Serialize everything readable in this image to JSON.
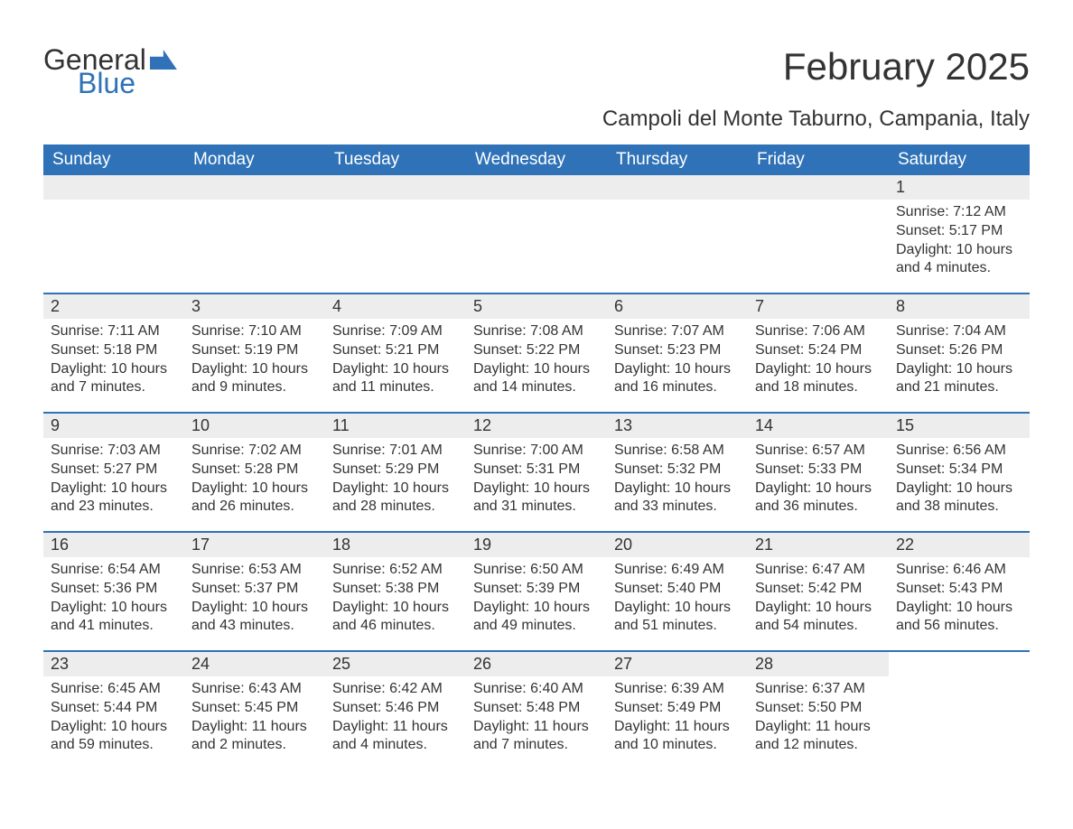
{
  "logo": {
    "word1": "General",
    "word2": "Blue"
  },
  "title": "February 2025",
  "location": "Campoli del Monte Taburno, Campania, Italy",
  "colors": {
    "header_bg": "#2f72b7",
    "header_fg": "#ffffff",
    "daynum_bg": "#ededed",
    "text": "#333333",
    "page_bg": "#ffffff",
    "week_border": "#2f72b7"
  },
  "typography": {
    "title_fontsize": 42,
    "location_fontsize": 24,
    "weekday_fontsize": 19,
    "daynum_fontsize": 18,
    "body_fontsize": 16
  },
  "weekdays": [
    "Sunday",
    "Monday",
    "Tuesday",
    "Wednesday",
    "Thursday",
    "Friday",
    "Saturday"
  ],
  "labels": {
    "sunrise": "Sunrise:",
    "sunset": "Sunset:",
    "daylight": "Daylight:"
  },
  "grid": {
    "columns": 7,
    "rows": 5,
    "first_day_column": 6
  },
  "days": [
    {
      "n": 1,
      "sunrise": "7:12 AM",
      "sunset": "5:17 PM",
      "daylight": "10 hours and 4 minutes."
    },
    {
      "n": 2,
      "sunrise": "7:11 AM",
      "sunset": "5:18 PM",
      "daylight": "10 hours and 7 minutes."
    },
    {
      "n": 3,
      "sunrise": "7:10 AM",
      "sunset": "5:19 PM",
      "daylight": "10 hours and 9 minutes."
    },
    {
      "n": 4,
      "sunrise": "7:09 AM",
      "sunset": "5:21 PM",
      "daylight": "10 hours and 11 minutes."
    },
    {
      "n": 5,
      "sunrise": "7:08 AM",
      "sunset": "5:22 PM",
      "daylight": "10 hours and 14 minutes."
    },
    {
      "n": 6,
      "sunrise": "7:07 AM",
      "sunset": "5:23 PM",
      "daylight": "10 hours and 16 minutes."
    },
    {
      "n": 7,
      "sunrise": "7:06 AM",
      "sunset": "5:24 PM",
      "daylight": "10 hours and 18 minutes."
    },
    {
      "n": 8,
      "sunrise": "7:04 AM",
      "sunset": "5:26 PM",
      "daylight": "10 hours and 21 minutes."
    },
    {
      "n": 9,
      "sunrise": "7:03 AM",
      "sunset": "5:27 PM",
      "daylight": "10 hours and 23 minutes."
    },
    {
      "n": 10,
      "sunrise": "7:02 AM",
      "sunset": "5:28 PM",
      "daylight": "10 hours and 26 minutes."
    },
    {
      "n": 11,
      "sunrise": "7:01 AM",
      "sunset": "5:29 PM",
      "daylight": "10 hours and 28 minutes."
    },
    {
      "n": 12,
      "sunrise": "7:00 AM",
      "sunset": "5:31 PM",
      "daylight": "10 hours and 31 minutes."
    },
    {
      "n": 13,
      "sunrise": "6:58 AM",
      "sunset": "5:32 PM",
      "daylight": "10 hours and 33 minutes."
    },
    {
      "n": 14,
      "sunrise": "6:57 AM",
      "sunset": "5:33 PM",
      "daylight": "10 hours and 36 minutes."
    },
    {
      "n": 15,
      "sunrise": "6:56 AM",
      "sunset": "5:34 PM",
      "daylight": "10 hours and 38 minutes."
    },
    {
      "n": 16,
      "sunrise": "6:54 AM",
      "sunset": "5:36 PM",
      "daylight": "10 hours and 41 minutes."
    },
    {
      "n": 17,
      "sunrise": "6:53 AM",
      "sunset": "5:37 PM",
      "daylight": "10 hours and 43 minutes."
    },
    {
      "n": 18,
      "sunrise": "6:52 AM",
      "sunset": "5:38 PM",
      "daylight": "10 hours and 46 minutes."
    },
    {
      "n": 19,
      "sunrise": "6:50 AM",
      "sunset": "5:39 PM",
      "daylight": "10 hours and 49 minutes."
    },
    {
      "n": 20,
      "sunrise": "6:49 AM",
      "sunset": "5:40 PM",
      "daylight": "10 hours and 51 minutes."
    },
    {
      "n": 21,
      "sunrise": "6:47 AM",
      "sunset": "5:42 PM",
      "daylight": "10 hours and 54 minutes."
    },
    {
      "n": 22,
      "sunrise": "6:46 AM",
      "sunset": "5:43 PM",
      "daylight": "10 hours and 56 minutes."
    },
    {
      "n": 23,
      "sunrise": "6:45 AM",
      "sunset": "5:44 PM",
      "daylight": "10 hours and 59 minutes."
    },
    {
      "n": 24,
      "sunrise": "6:43 AM",
      "sunset": "5:45 PM",
      "daylight": "11 hours and 2 minutes."
    },
    {
      "n": 25,
      "sunrise": "6:42 AM",
      "sunset": "5:46 PM",
      "daylight": "11 hours and 4 minutes."
    },
    {
      "n": 26,
      "sunrise": "6:40 AM",
      "sunset": "5:48 PM",
      "daylight": "11 hours and 7 minutes."
    },
    {
      "n": 27,
      "sunrise": "6:39 AM",
      "sunset": "5:49 PM",
      "daylight": "11 hours and 10 minutes."
    },
    {
      "n": 28,
      "sunrise": "6:37 AM",
      "sunset": "5:50 PM",
      "daylight": "11 hours and 12 minutes."
    }
  ]
}
